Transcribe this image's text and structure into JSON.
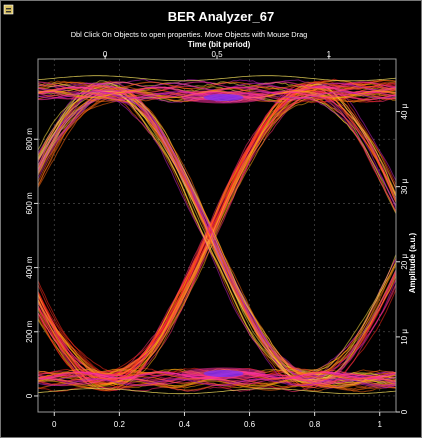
{
  "window": {
    "title": "BER Analyzer_67",
    "subtitle": "Dbl Click On Objects to open properties.  Move Objects with Mouse Drag",
    "icon": "analyzer-window-icon"
  },
  "colors": {
    "background": "#000000",
    "grid": "#4a4a4a",
    "traces": [
      "#ff2a1a",
      "#ff6a10",
      "#ffaa10",
      "#ffe040",
      "#ff3070",
      "#c020c0"
    ],
    "hot": "#ff30a0",
    "hottest": "#7a30ff"
  },
  "chart_data": {
    "type": "line",
    "subtype": "eye-diagram",
    "title": "BER Analyzer_67",
    "top_axis": {
      "label": "Time (bit period)",
      "range": [
        -0.3,
        1.3
      ],
      "ticks": [
        "0",
        "0.5",
        "1"
      ],
      "tick_values": [
        0,
        0.5,
        1
      ]
    },
    "bottom_axis": {
      "label": "",
      "range": [
        -0.05,
        1.05
      ],
      "ticks": [
        "0",
        "0.2",
        "0.4",
        "0.6",
        "0.8",
        "1"
      ],
      "tick_values": [
        0,
        0.2,
        0.4,
        0.6,
        0.8,
        1
      ]
    },
    "left_axis": {
      "label": "",
      "range": [
        -0.05,
        1.05
      ],
      "ticks": [
        "0",
        "200 m",
        "400 m",
        "600 m",
        "800 m"
      ],
      "tick_values": [
        0,
        0.2,
        0.4,
        0.6,
        0.8
      ]
    },
    "right_axis": {
      "label": "Amplitude (a.u.)",
      "range": [
        0,
        47
      ],
      "ticks": [
        "0",
        "10 μ",
        "20 μ",
        "30 μ",
        "40 μ"
      ],
      "tick_values": [
        0,
        10,
        20,
        30,
        40
      ]
    },
    "eye": {
      "low_level": 0.05,
      "high_level": 0.95,
      "crossings": [
        0.0,
        0.5,
        1.0
      ],
      "crossing_level": 0.5
    },
    "grid": true,
    "legend": "none"
  }
}
